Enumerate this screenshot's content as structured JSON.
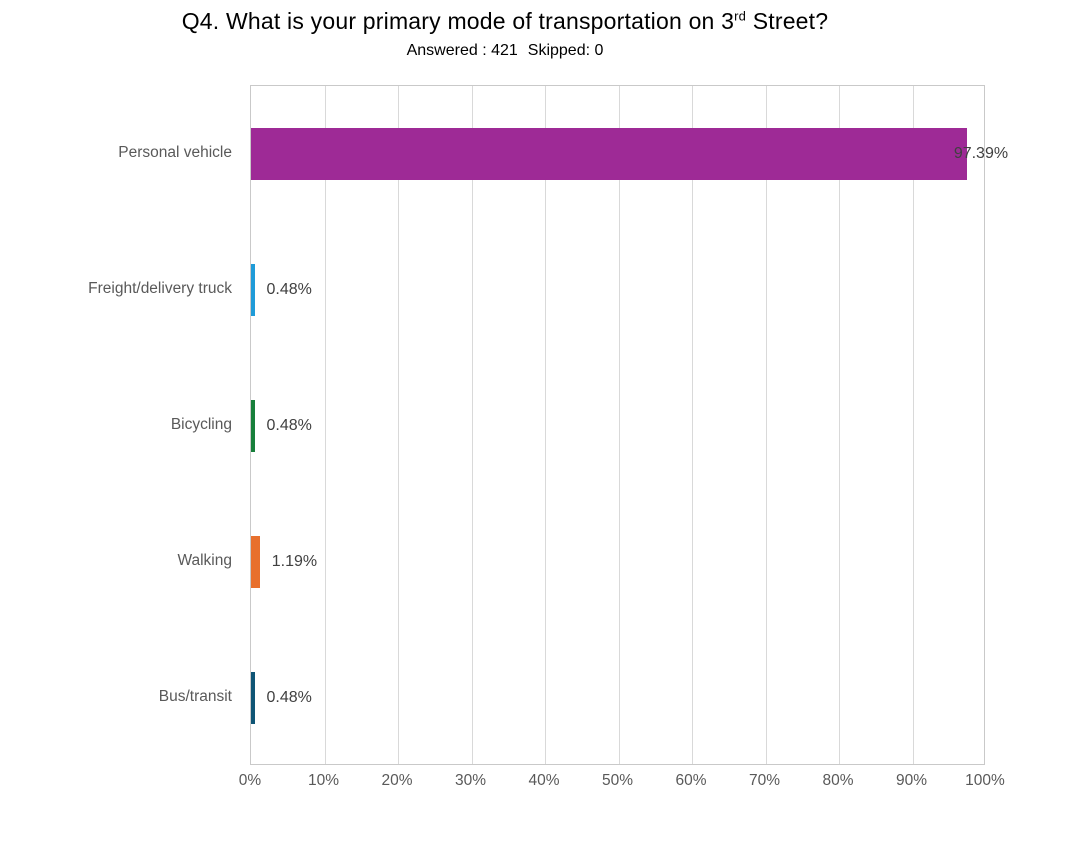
{
  "header": {
    "title_prefix": "Q4. What is your primary mode of transportation on 3",
    "title_superscript": "rd",
    "title_suffix": " Street?",
    "answered": "Answered : 421",
    "skipped": "Skipped: 0"
  },
  "chart_data": {
    "type": "bar",
    "orientation": "horizontal",
    "title": "Q4. What is your primary mode of transportation on 3rd Street?",
    "subtitle": "Answered : 421  Skipped: 0",
    "categories": [
      "Personal vehicle",
      "Freight/delivery truck",
      "Bicycling",
      "Walking",
      "Bus/transit"
    ],
    "values": [
      97.39,
      0.48,
      0.48,
      1.19,
      0.48
    ],
    "value_labels": [
      "97.39%",
      "0.48%",
      "0.48%",
      "1.19%",
      "0.48%"
    ],
    "bar_colors": [
      "#9e2a96",
      "#1f9bd8",
      "#177f3b",
      "#e8702d",
      "#0f5575"
    ],
    "xlim": [
      0,
      100
    ],
    "x_ticks": [
      "0%",
      "10%",
      "20%",
      "30%",
      "40%",
      "50%",
      "60%",
      "70%",
      "80%",
      "90%",
      "100%"
    ],
    "grid": "vertical-gridlines",
    "legend": "none",
    "colors": {
      "gridline": "#d9d9d9",
      "plot_border": "#c9c9c9",
      "axis_text": "#595959",
      "value_text": "#404040",
      "title_text": "#000000"
    }
  }
}
